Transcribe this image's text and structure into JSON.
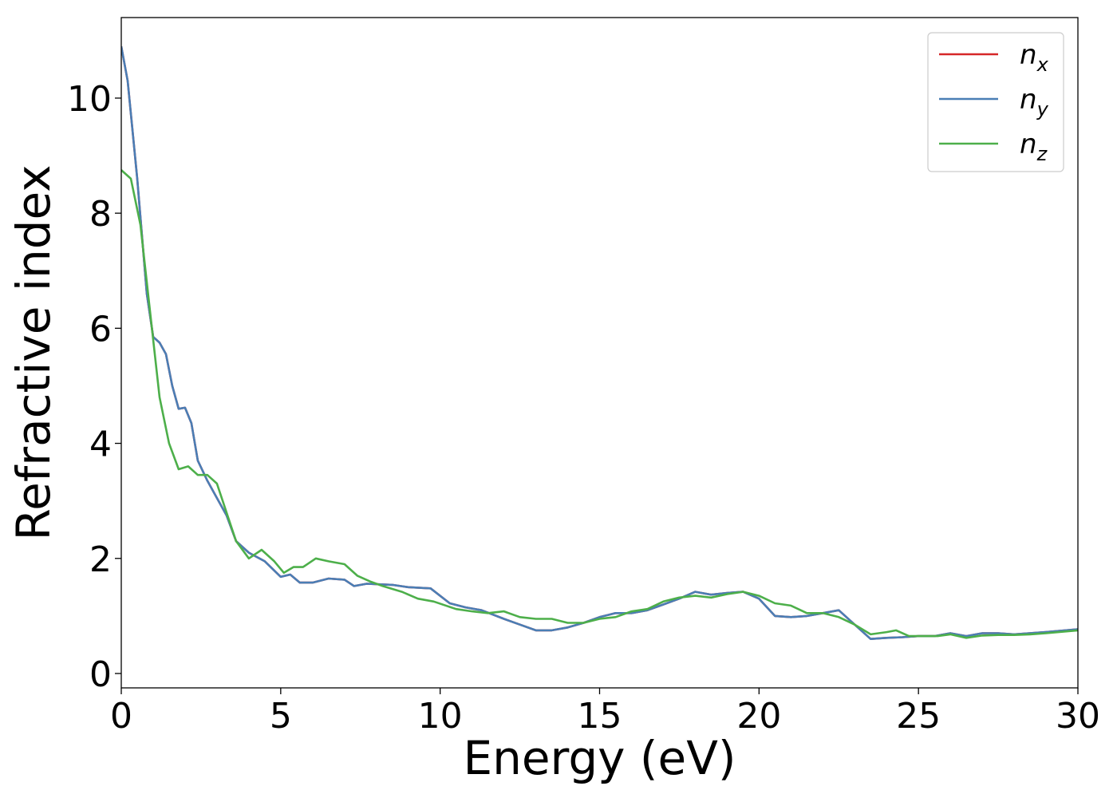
{
  "chart_data": {
    "type": "line",
    "xlabel": "Energy (eV)",
    "ylabel": "Refractive index",
    "xlim": [
      0,
      30
    ],
    "ylim": [
      -0.25,
      11.4
    ],
    "x_ticks": [
      0,
      5,
      10,
      15,
      20,
      25,
      30
    ],
    "y_ticks": [
      0,
      2,
      4,
      6,
      8,
      10
    ],
    "grid": false,
    "legend_position": "top-right",
    "series": [
      {
        "name": "n",
        "subscript": "x",
        "color": "#d62728",
        "points": [
          [
            0,
            10.9
          ],
          [
            0.2,
            10.3
          ],
          [
            0.5,
            8.6
          ],
          [
            0.8,
            6.6
          ],
          [
            1.0,
            5.85
          ],
          [
            1.2,
            5.75
          ],
          [
            1.4,
            5.55
          ],
          [
            1.6,
            5.0
          ],
          [
            1.8,
            4.6
          ],
          [
            2.0,
            4.62
          ],
          [
            2.2,
            4.35
          ],
          [
            2.4,
            3.7
          ],
          [
            2.7,
            3.35
          ],
          [
            3.0,
            3.05
          ],
          [
            3.3,
            2.75
          ],
          [
            3.6,
            2.3
          ],
          [
            4.0,
            2.1
          ],
          [
            4.5,
            1.95
          ],
          [
            5.0,
            1.68
          ],
          [
            5.3,
            1.72
          ],
          [
            5.6,
            1.58
          ],
          [
            6.0,
            1.58
          ],
          [
            6.5,
            1.65
          ],
          [
            7.0,
            1.63
          ],
          [
            7.3,
            1.52
          ],
          [
            7.7,
            1.56
          ],
          [
            8.5,
            1.54
          ],
          [
            9.0,
            1.5
          ],
          [
            9.7,
            1.48
          ],
          [
            10.3,
            1.22
          ],
          [
            10.8,
            1.15
          ],
          [
            11.3,
            1.1
          ],
          [
            12.0,
            0.95
          ],
          [
            12.5,
            0.85
          ],
          [
            13.0,
            0.75
          ],
          [
            13.5,
            0.75
          ],
          [
            14.0,
            0.8
          ],
          [
            14.5,
            0.88
          ],
          [
            15.0,
            0.98
          ],
          [
            15.5,
            1.05
          ],
          [
            16.0,
            1.05
          ],
          [
            16.5,
            1.1
          ],
          [
            17.0,
            1.2
          ],
          [
            17.5,
            1.3
          ],
          [
            18.0,
            1.42
          ],
          [
            18.5,
            1.37
          ],
          [
            19.0,
            1.4
          ],
          [
            19.5,
            1.42
          ],
          [
            20.0,
            1.3
          ],
          [
            20.5,
            1.0
          ],
          [
            21.0,
            0.98
          ],
          [
            21.5,
            1.0
          ],
          [
            22.0,
            1.05
          ],
          [
            22.5,
            1.1
          ],
          [
            23.0,
            0.85
          ],
          [
            23.5,
            0.6
          ],
          [
            24.0,
            0.62
          ],
          [
            24.5,
            0.63
          ],
          [
            25.0,
            0.65
          ],
          [
            25.5,
            0.65
          ],
          [
            26.0,
            0.7
          ],
          [
            26.5,
            0.65
          ],
          [
            27.0,
            0.7
          ],
          [
            27.5,
            0.7
          ],
          [
            28.0,
            0.68
          ],
          [
            29.0,
            0.72
          ],
          [
            30.0,
            0.77
          ]
        ]
      },
      {
        "name": "n",
        "subscript": "y",
        "color": "#4a7eb5",
        "points": [
          [
            0,
            10.9
          ],
          [
            0.2,
            10.3
          ],
          [
            0.5,
            8.6
          ],
          [
            0.8,
            6.6
          ],
          [
            1.0,
            5.85
          ],
          [
            1.2,
            5.75
          ],
          [
            1.4,
            5.55
          ],
          [
            1.6,
            5.0
          ],
          [
            1.8,
            4.6
          ],
          [
            2.0,
            4.62
          ],
          [
            2.2,
            4.35
          ],
          [
            2.4,
            3.7
          ],
          [
            2.7,
            3.35
          ],
          [
            3.0,
            3.05
          ],
          [
            3.3,
            2.75
          ],
          [
            3.6,
            2.3
          ],
          [
            4.0,
            2.1
          ],
          [
            4.5,
            1.95
          ],
          [
            5.0,
            1.68
          ],
          [
            5.3,
            1.72
          ],
          [
            5.6,
            1.58
          ],
          [
            6.0,
            1.58
          ],
          [
            6.5,
            1.65
          ],
          [
            7.0,
            1.63
          ],
          [
            7.3,
            1.52
          ],
          [
            7.7,
            1.56
          ],
          [
            8.5,
            1.54
          ],
          [
            9.0,
            1.5
          ],
          [
            9.7,
            1.48
          ],
          [
            10.3,
            1.22
          ],
          [
            10.8,
            1.15
          ],
          [
            11.3,
            1.1
          ],
          [
            12.0,
            0.95
          ],
          [
            12.5,
            0.85
          ],
          [
            13.0,
            0.75
          ],
          [
            13.5,
            0.75
          ],
          [
            14.0,
            0.8
          ],
          [
            14.5,
            0.88
          ],
          [
            15.0,
            0.98
          ],
          [
            15.5,
            1.05
          ],
          [
            16.0,
            1.05
          ],
          [
            16.5,
            1.1
          ],
          [
            17.0,
            1.2
          ],
          [
            17.5,
            1.3
          ],
          [
            18.0,
            1.42
          ],
          [
            18.5,
            1.37
          ],
          [
            19.0,
            1.4
          ],
          [
            19.5,
            1.42
          ],
          [
            20.0,
            1.3
          ],
          [
            20.5,
            1.0
          ],
          [
            21.0,
            0.98
          ],
          [
            21.5,
            1.0
          ],
          [
            22.0,
            1.05
          ],
          [
            22.5,
            1.1
          ],
          [
            23.0,
            0.85
          ],
          [
            23.5,
            0.6
          ],
          [
            24.0,
            0.62
          ],
          [
            24.5,
            0.63
          ],
          [
            25.0,
            0.65
          ],
          [
            25.5,
            0.65
          ],
          [
            26.0,
            0.7
          ],
          [
            26.5,
            0.65
          ],
          [
            27.0,
            0.7
          ],
          [
            27.5,
            0.7
          ],
          [
            28.0,
            0.68
          ],
          [
            29.0,
            0.72
          ],
          [
            30.0,
            0.77
          ]
        ]
      },
      {
        "name": "n",
        "subscript": "z",
        "color": "#4daf4a",
        "points": [
          [
            0,
            8.75
          ],
          [
            0.3,
            8.6
          ],
          [
            0.6,
            7.8
          ],
          [
            0.9,
            6.3
          ],
          [
            1.2,
            4.8
          ],
          [
            1.5,
            4.0
          ],
          [
            1.8,
            3.55
          ],
          [
            2.1,
            3.6
          ],
          [
            2.4,
            3.45
          ],
          [
            2.7,
            3.45
          ],
          [
            3.0,
            3.3
          ],
          [
            3.3,
            2.8
          ],
          [
            3.6,
            2.3
          ],
          [
            4.0,
            2.0
          ],
          [
            4.4,
            2.15
          ],
          [
            4.8,
            1.95
          ],
          [
            5.1,
            1.75
          ],
          [
            5.4,
            1.85
          ],
          [
            5.7,
            1.85
          ],
          [
            6.1,
            2.0
          ],
          [
            6.5,
            1.95
          ],
          [
            7.0,
            1.9
          ],
          [
            7.4,
            1.7
          ],
          [
            7.8,
            1.6
          ],
          [
            8.2,
            1.52
          ],
          [
            8.8,
            1.42
          ],
          [
            9.3,
            1.3
          ],
          [
            9.8,
            1.25
          ],
          [
            10.5,
            1.12
          ],
          [
            11.0,
            1.08
          ],
          [
            11.5,
            1.05
          ],
          [
            12.0,
            1.08
          ],
          [
            12.5,
            0.98
          ],
          [
            13.0,
            0.95
          ],
          [
            13.5,
            0.95
          ],
          [
            14.0,
            0.88
          ],
          [
            14.5,
            0.88
          ],
          [
            15.0,
            0.95
          ],
          [
            15.5,
            0.98
          ],
          [
            16.0,
            1.08
          ],
          [
            16.5,
            1.12
          ],
          [
            17.0,
            1.25
          ],
          [
            17.5,
            1.32
          ],
          [
            18.0,
            1.35
          ],
          [
            18.5,
            1.32
          ],
          [
            19.0,
            1.38
          ],
          [
            19.5,
            1.42
          ],
          [
            20.0,
            1.35
          ],
          [
            20.5,
            1.22
          ],
          [
            21.0,
            1.18
          ],
          [
            21.5,
            1.05
          ],
          [
            22.0,
            1.05
          ],
          [
            22.5,
            0.98
          ],
          [
            23.0,
            0.85
          ],
          [
            23.5,
            0.68
          ],
          [
            24.0,
            0.72
          ],
          [
            24.3,
            0.75
          ],
          [
            24.7,
            0.65
          ],
          [
            25.2,
            0.65
          ],
          [
            25.6,
            0.65
          ],
          [
            26.0,
            0.68
          ],
          [
            26.5,
            0.62
          ],
          [
            27.0,
            0.66
          ],
          [
            27.5,
            0.67
          ],
          [
            28.0,
            0.67
          ],
          [
            28.5,
            0.68
          ],
          [
            29.0,
            0.7
          ],
          [
            30.0,
            0.75
          ]
        ]
      }
    ]
  }
}
